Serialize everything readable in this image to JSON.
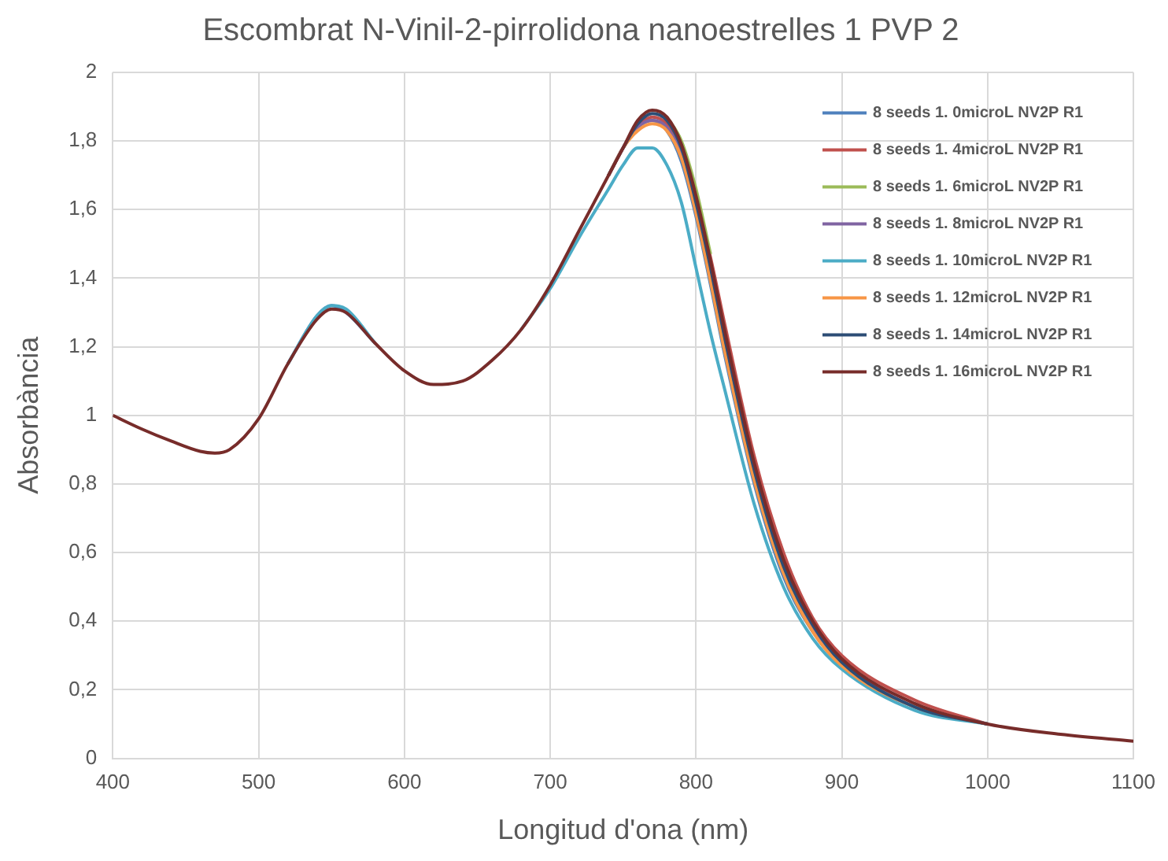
{
  "chart_data": {
    "type": "line",
    "title": "Escombrat N-Vinil-2-pirrolidona nanoestrelles 1 PVP 2",
    "xlabel": "Longitud d'ona (nm)",
    "ylabel": "Absorbància",
    "x": [
      400,
      420,
      440,
      460,
      470,
      480,
      500,
      520,
      540,
      550,
      560,
      580,
      600,
      620,
      640,
      660,
      680,
      700,
      720,
      740,
      750,
      760,
      770,
      780,
      790,
      800,
      810,
      820,
      840,
      860,
      880,
      900,
      950,
      1000,
      1050,
      1100
    ],
    "xlim": [
      400,
      1100
    ],
    "xticks": [
      400,
      500,
      600,
      700,
      800,
      900,
      1000,
      1100
    ],
    "ylim": [
      0,
      2
    ],
    "yticks": [
      0,
      {
        "value": 0.2,
        "label": "0,2"
      },
      {
        "value": 0.4,
        "label": "0,4"
      },
      {
        "value": 0.6,
        "label": "0,6"
      },
      {
        "value": 0.8,
        "label": "0,8"
      },
      1,
      {
        "value": 1.2,
        "label": "1,2"
      },
      {
        "value": 1.4,
        "label": "1,4"
      },
      {
        "value": 1.6,
        "label": "1,6"
      },
      {
        "value": 1.8,
        "label": "1,8"
      },
      2
    ],
    "grid": true,
    "legend": "top right",
    "marker": "none",
    "line_style": "solid",
    "series": [
      {
        "name": "8 seeds 1. 0microL NV2P R1",
        "color": "#4f81bd",
        "values": [
          null,
          null,
          null,
          null,
          null,
          null,
          null,
          1.15,
          1.29,
          1.32,
          1.3,
          1.21,
          null,
          null,
          null,
          null,
          null,
          null,
          null,
          1.7,
          1.78,
          1.84,
          1.86,
          1.83,
          1.74,
          1.58,
          1.38,
          1.17,
          0.8,
          0.53,
          0.37,
          0.27,
          0.15,
          0.1,
          null,
          null
        ]
      },
      {
        "name": "8 seeds 1. 4microL NV2P R1",
        "color": "#c0504d",
        "values": [
          null,
          null,
          null,
          null,
          null,
          null,
          null,
          null,
          null,
          null,
          null,
          null,
          null,
          null,
          null,
          null,
          null,
          null,
          null,
          1.7,
          1.78,
          1.84,
          1.87,
          1.85,
          1.78,
          1.63,
          1.46,
          1.26,
          0.88,
          0.6,
          0.41,
          0.3,
          0.17,
          0.1,
          null,
          null
        ]
      },
      {
        "name": "8 seeds 1. 6microL NV2P R1",
        "color": "#9bbb59",
        "values": [
          null,
          null,
          null,
          null,
          null,
          null,
          null,
          null,
          null,
          null,
          null,
          null,
          null,
          null,
          null,
          null,
          null,
          null,
          null,
          null,
          null,
          null,
          null,
          1.87,
          1.8,
          1.66,
          1.47,
          null,
          null,
          null,
          null,
          null,
          null,
          null,
          null,
          null
        ]
      },
      {
        "name": "8 seeds 1. 8microL NV2P R1",
        "color": "#8064a2",
        "values": [
          null,
          null,
          null,
          null,
          null,
          null,
          null,
          null,
          null,
          null,
          null,
          null,
          null,
          null,
          null,
          null,
          null,
          null,
          null,
          1.7,
          1.78,
          1.84,
          1.86,
          1.84,
          1.76,
          1.6,
          1.41,
          1.2,
          0.82,
          0.55,
          0.38,
          0.28,
          0.15,
          0.1,
          null,
          null
        ]
      },
      {
        "name": "8 seeds 1. 10microL NV2P R1",
        "color": "#4bacc6",
        "values": [
          null,
          null,
          null,
          null,
          null,
          null,
          null,
          1.15,
          1.29,
          1.32,
          1.31,
          1.21,
          null,
          null,
          null,
          null,
          1.25,
          1.37,
          1.52,
          1.66,
          1.73,
          1.78,
          1.78,
          1.73,
          1.62,
          1.43,
          1.24,
          1.07,
          0.74,
          0.5,
          0.35,
          0.26,
          0.14,
          0.1,
          null,
          null
        ]
      },
      {
        "name": "8 seeds 1. 12microL NV2P R1",
        "color": "#f79646",
        "values": [
          null,
          null,
          null,
          null,
          null,
          null,
          null,
          null,
          null,
          null,
          null,
          null,
          null,
          null,
          null,
          null,
          null,
          null,
          null,
          1.7,
          1.78,
          1.83,
          1.85,
          1.83,
          1.75,
          1.59,
          1.39,
          1.18,
          0.81,
          0.54,
          0.37,
          0.27,
          0.15,
          0.1,
          null,
          null
        ]
      },
      {
        "name": "8 seeds 1. 14microL NV2P R1",
        "color": "#2c4d75",
        "values": [
          null,
          null,
          null,
          null,
          null,
          null,
          null,
          null,
          null,
          null,
          null,
          null,
          null,
          null,
          null,
          null,
          null,
          null,
          null,
          1.7,
          1.78,
          1.85,
          1.88,
          1.86,
          1.78,
          1.62,
          1.43,
          1.22,
          0.84,
          0.56,
          0.39,
          0.28,
          0.15,
          0.1,
          null,
          null
        ]
      },
      {
        "name": "8 seeds 1. 16microL NV2P R1",
        "color": "#772c2a",
        "values": [
          1.0,
          0.96,
          0.925,
          0.895,
          0.89,
          0.9,
          0.99,
          1.15,
          1.28,
          1.31,
          1.3,
          1.21,
          1.13,
          1.09,
          1.1,
          1.16,
          1.25,
          1.38,
          1.54,
          1.7,
          1.78,
          1.86,
          1.89,
          1.87,
          1.79,
          1.64,
          1.45,
          1.24,
          0.86,
          0.58,
          0.4,
          0.29,
          0.16,
          0.1,
          0.07,
          0.05
        ]
      }
    ]
  }
}
